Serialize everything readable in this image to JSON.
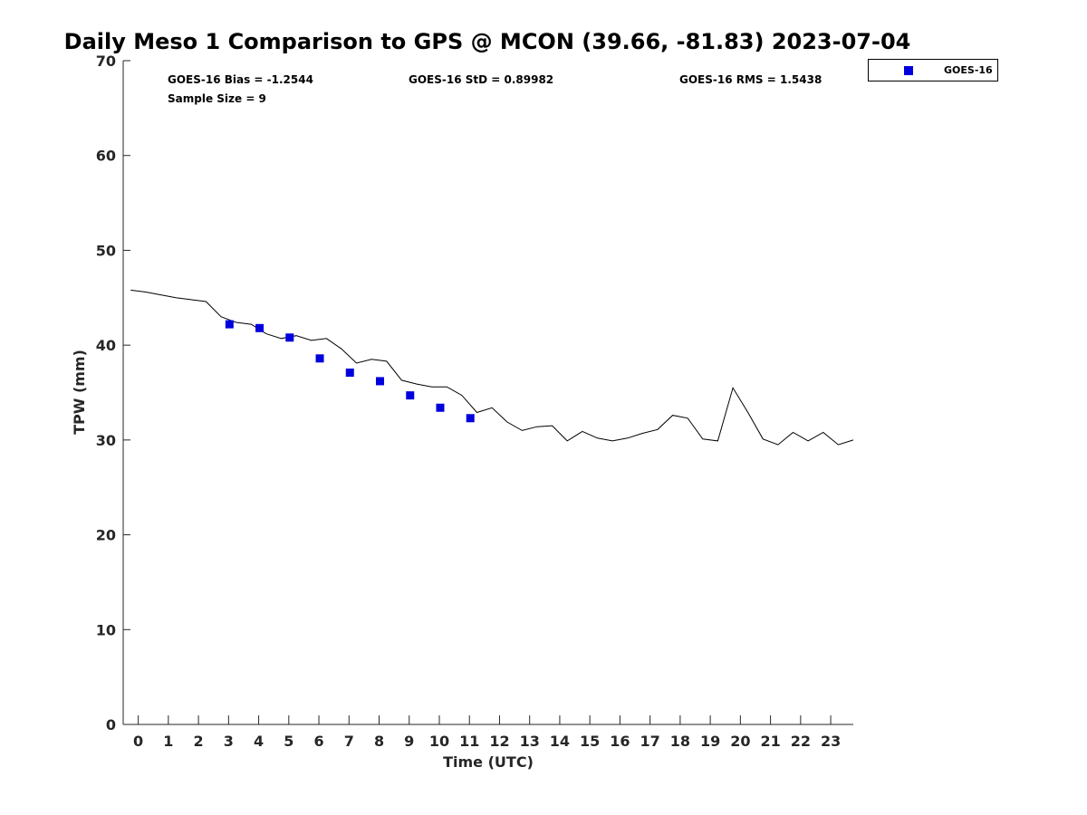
{
  "chart_data": {
    "type": "scatter",
    "title": "Daily Meso 1 Comparison to GPS @ MCON (39.66, -81.83) 2023-07-04",
    "xlabel": "Time (UTC)",
    "ylabel": "TPW (mm)",
    "xlim": [
      -0.5,
      23.75
    ],
    "ylim": [
      0,
      70
    ],
    "x_ticks": [
      0,
      1,
      2,
      3,
      4,
      5,
      6,
      7,
      8,
      9,
      10,
      11,
      12,
      13,
      14,
      15,
      16,
      17,
      18,
      19,
      20,
      21,
      22,
      23
    ],
    "y_ticks": [
      0,
      10,
      20,
      30,
      40,
      50,
      60,
      70
    ],
    "grid": false,
    "legend_position": "top-right, outside",
    "stats": {
      "bias": "GOES-16 Bias = -1.2544",
      "std": "GOES-16 StD = 0.89982",
      "rms": "GOES-16 RMS = 1.5438",
      "sample_size": "Sample Size = 9"
    },
    "series": [
      {
        "name": "GOES-16",
        "kind": "scatter",
        "marker": "square",
        "color": "#0000dd",
        "x": [
          3.03,
          4.03,
          5.03,
          6.03,
          7.03,
          8.03,
          9.03,
          10.03,
          11.03
        ],
        "y": [
          42.2,
          41.8,
          40.8,
          38.6,
          37.1,
          36.2,
          34.7,
          33.4,
          32.3
        ]
      },
      {
        "kind": "line",
        "color": "#000000",
        "x": [
          -0.25,
          0.25,
          0.75,
          1.25,
          1.75,
          2.25,
          2.75,
          3.25,
          3.75,
          4.25,
          4.75,
          5.25,
          5.75,
          6.25,
          6.75,
          7.25,
          7.75,
          8.25,
          8.75,
          9.25,
          9.75,
          10.25,
          10.75,
          11.25,
          11.75,
          12.25,
          12.75,
          13.25,
          13.75,
          14.25,
          14.75,
          15.25,
          15.75,
          16.25,
          16.75,
          17.25,
          17.75,
          18.25,
          18.75,
          19.25,
          19.75,
          20.25,
          20.75,
          21.25,
          21.75,
          22.25,
          22.75,
          23.25,
          23.75
        ],
        "y": [
          45.8,
          45.6,
          45.3,
          45.0,
          44.8,
          44.6,
          43.0,
          42.4,
          42.2,
          41.2,
          40.7,
          41.0,
          40.5,
          40.7,
          39.6,
          38.1,
          38.5,
          38.3,
          36.3,
          35.9,
          35.6,
          35.6,
          34.7,
          32.9,
          33.4,
          31.9,
          31.0,
          31.4,
          31.5,
          29.9,
          30.9,
          30.2,
          29.9,
          30.2,
          30.7,
          31.1,
          32.6,
          32.3,
          30.1,
          29.9,
          35.5,
          32.9,
          30.1,
          29.5,
          30.8,
          29.9,
          30.8,
          29.5,
          30.0
        ]
      }
    ]
  }
}
